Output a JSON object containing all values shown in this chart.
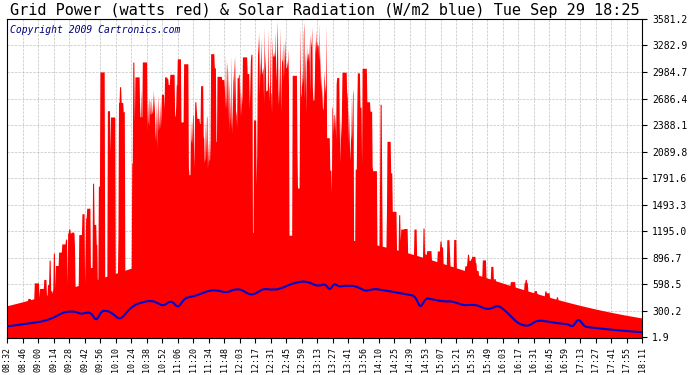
{
  "title": "Grid Power (watts red) & Solar Radiation (W/m2 blue) Tue Sep 29 18:25",
  "copyright": "Copyright 2009 Cartronics.com",
  "yticks": [
    1.9,
    300.2,
    598.5,
    896.7,
    1195.0,
    1493.3,
    1791.6,
    2089.8,
    2388.1,
    2686.4,
    2984.7,
    3282.9,
    3581.2
  ],
  "ymin": 0,
  "ymax": 3581.2,
  "xtick_labels": [
    "08:32",
    "08:46",
    "09:00",
    "09:14",
    "09:28",
    "09:42",
    "09:56",
    "10:10",
    "10:24",
    "10:38",
    "10:52",
    "11:06",
    "11:20",
    "11:34",
    "11:48",
    "12:03",
    "12:17",
    "12:31",
    "12:45",
    "12:59",
    "13:13",
    "13:27",
    "13:41",
    "13:56",
    "14:10",
    "14:25",
    "14:39",
    "14:53",
    "15:07",
    "15:21",
    "15:35",
    "15:49",
    "16:03",
    "16:17",
    "16:31",
    "16:45",
    "16:59",
    "17:13",
    "17:27",
    "17:41",
    "17:55",
    "18:11"
  ],
  "bg_color": "#ffffff",
  "plot_bg_color": "#ffffff",
  "grid_color": "#aaaaaa",
  "red_color": "#ff0000",
  "blue_color": "#0000cc",
  "title_fontsize": 11,
  "copyright_fontsize": 7
}
